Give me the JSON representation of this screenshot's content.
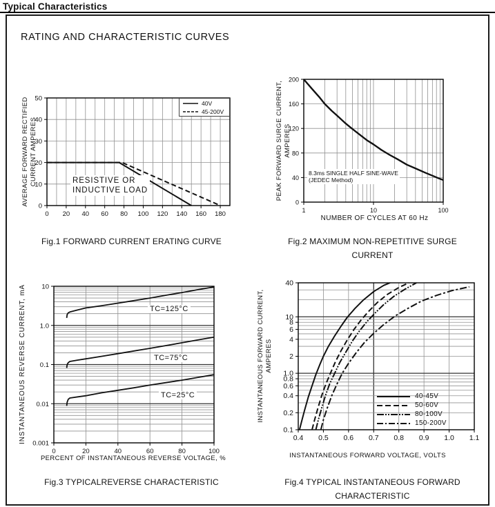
{
  "page": {
    "title": "Typical Characteristics",
    "box_heading": "RATING AND CHARACTERISTIC CURVES"
  },
  "colors": {
    "ink": "#111111",
    "grid_minor": "#909090",
    "grid_dark": "#333333",
    "border": "#000000",
    "background": "#ffffff"
  },
  "chart_data": [
    {
      "type": "line",
      "figure": "Fig.1",
      "caption": [
        "Fig.1 FORWARD CURRENT ERATING CURVE"
      ],
      "x_axis": {
        "title": "",
        "scale": "linear",
        "min": 0,
        "max": 190,
        "grid": 10,
        "ticks": [
          {
            "v": 0,
            "t": "0"
          },
          {
            "v": 20,
            "t": "20"
          },
          {
            "v": 40,
            "t": "40"
          },
          {
            "v": 60,
            "t": "60"
          },
          {
            "v": 80,
            "t": "80"
          },
          {
            "v": 100,
            "t": "100"
          },
          {
            "v": 120,
            "t": "120"
          },
          {
            "v": 140,
            "t": "140"
          },
          {
            "v": 160,
            "t": "160"
          },
          {
            "v": 180,
            "t": "180"
          }
        ]
      },
      "y_axis": {
        "label_lines": [
          "AVERAGE FORWARD RECTIFIED",
          "CURRENT AMPERES"
        ],
        "scale": "linear",
        "min": 0,
        "max": 50,
        "grid": 10,
        "ticks": [
          {
            "v": 0,
            "t": "0"
          },
          {
            "v": 10,
            "t": "10"
          },
          {
            "v": 20,
            "t": "20"
          },
          {
            "v": 30,
            "t": "30"
          },
          {
            "v": 40,
            "t": "40"
          },
          {
            "v": 50,
            "t": "50"
          }
        ]
      },
      "legend": {
        "position": "top-right",
        "border": true,
        "entries": [
          {
            "name": "40V",
            "style": "solid"
          },
          {
            "name": "45-200V",
            "style": "dashed"
          }
        ]
      },
      "annotations": [
        {
          "lines": [
            "RESISTIVE OR",
            "INDUCTIVE LOAD"
          ]
        }
      ],
      "series": [
        {
          "name": "40V",
          "dash": null,
          "width": 2,
          "points": [
            [
              0,
              20
            ],
            [
              75,
              20
            ],
            [
              150,
              0
            ]
          ]
        },
        {
          "name": "45-200V",
          "dash": "7,4",
          "width": 2,
          "points": [
            [
              0,
              20
            ],
            [
              78,
              20
            ],
            [
              180,
              0
            ]
          ]
        }
      ]
    },
    {
      "type": "line",
      "figure": "Fig.2",
      "caption": [
        "Fig.2 MAXIMUM NON-REPETITIVE SURGE",
        "CURRENT"
      ],
      "x_axis": {
        "title": "NUMBER OF CYCLES AT 60 Hz",
        "scale": "log",
        "min": 1,
        "max": 100,
        "ticks": [
          {
            "v": 1,
            "t": "1"
          },
          {
            "v": 10,
            "t": "10"
          },
          {
            "v": 100,
            "t": "100"
          }
        ]
      },
      "y_axis": {
        "label_lines": [
          "PEAK  FORWARD SURGE CURRENT,",
          "AMPERES"
        ],
        "scale": "linear",
        "min": 0,
        "max": 200,
        "grid": 40,
        "ticks": [
          {
            "v": 0,
            "t": "0"
          },
          {
            "v": 40,
            "t": "40"
          },
          {
            "v": 80,
            "t": "80"
          },
          {
            "v": 120,
            "t": "120"
          },
          {
            "v": 160,
            "t": "160"
          },
          {
            "v": 200,
            "t": "200"
          }
        ]
      },
      "annotations": [
        {
          "lines": [
            "8.3ms SINGLE HALF SINE-WAVE",
            "(JEDEC Method)"
          ]
        }
      ],
      "series": [
        {
          "name": "surge-current",
          "dash": null,
          "width": 2.4,
          "points": [
            [
              1,
              200
            ],
            [
              1.3,
              185
            ],
            [
              1.7,
              170
            ],
            [
              2,
              160
            ],
            [
              2.5,
              149
            ],
            [
              3,
              141
            ],
            [
              4,
              128
            ],
            [
              5,
              119
            ],
            [
              6,
              112
            ],
            [
              8,
              101
            ],
            [
              10,
              94
            ],
            [
              13,
              85
            ],
            [
              17,
              77
            ],
            [
              22,
              70
            ],
            [
              30,
              61
            ],
            [
              40,
              55
            ],
            [
              55,
              48
            ],
            [
              70,
              43
            ],
            [
              85,
              39
            ],
            [
              100,
              36
            ]
          ]
        }
      ]
    },
    {
      "type": "line",
      "figure": "Fig.3",
      "caption": [
        "Fig.3 TYPICALREVERSE CHARACTERISTIC"
      ],
      "x_axis": {
        "title": "PERCENT OF INSTANTANEOUS REVERSE VOLTAGE, %",
        "scale": "linear",
        "min": 0,
        "max": 100,
        "grid": 20,
        "ticks": [
          {
            "v": 0,
            "t": "0"
          },
          {
            "v": 20,
            "t": "20"
          },
          {
            "v": 40,
            "t": "40"
          },
          {
            "v": 60,
            "t": "60"
          },
          {
            "v": 80,
            "t": "80"
          },
          {
            "v": 100,
            "t": "100"
          }
        ]
      },
      "y_axis": {
        "label_lines": [
          "INSTANTANEOUS REVERSE CURRENT, mA"
        ],
        "scale": "log",
        "min": 0.001,
        "max": 10,
        "dark": [
          0.01,
          0.1,
          1
        ],
        "ticks": [
          {
            "v": 10,
            "t": "10"
          },
          {
            "v": 1,
            "t": "1.0"
          },
          {
            "v": 0.1,
            "t": "0.1"
          },
          {
            "v": 0.01,
            "t": "0.01"
          },
          {
            "v": 0.001,
            "t": "0.001"
          }
        ]
      },
      "annotations": [
        {
          "lines": [
            "TC=125°C"
          ]
        },
        {
          "lines": [
            "TC=75°C"
          ]
        },
        {
          "lines": [
            "TC=25°C"
          ]
        }
      ],
      "series": [
        {
          "name": "TC=125C",
          "dash": null,
          "width": 1.8,
          "points": [
            [
              8,
              1.55
            ],
            [
              8.3,
              1.9
            ],
            [
              9,
              2.1
            ],
            [
              10,
              2.2
            ],
            [
              15,
              2.5
            ],
            [
              20,
              2.8
            ],
            [
              30,
              3.2
            ],
            [
              40,
              3.7
            ],
            [
              50,
              4.3
            ],
            [
              60,
              5.0
            ],
            [
              70,
              5.9
            ],
            [
              80,
              6.9
            ],
            [
              90,
              8.2
            ],
            [
              100,
              9.6
            ]
          ]
        },
        {
          "name": "TC=75C",
          "dash": null,
          "width": 1.8,
          "points": [
            [
              8,
              0.082
            ],
            [
              8.3,
              0.1
            ],
            [
              9,
              0.112
            ],
            [
              10,
              0.12
            ],
            [
              15,
              0.13
            ],
            [
              20,
              0.14
            ],
            [
              30,
              0.163
            ],
            [
              40,
              0.19
            ],
            [
              50,
              0.222
            ],
            [
              60,
              0.26
            ],
            [
              70,
              0.305
            ],
            [
              80,
              0.36
            ],
            [
              90,
              0.425
            ],
            [
              100,
              0.5
            ]
          ]
        },
        {
          "name": "TC=25C",
          "dash": null,
          "width": 1.8,
          "points": [
            [
              8,
              0.0088
            ],
            [
              8.3,
              0.011
            ],
            [
              9,
              0.013
            ],
            [
              10,
              0.014
            ],
            [
              15,
              0.015
            ],
            [
              20,
              0.016
            ],
            [
              30,
              0.019
            ],
            [
              40,
              0.022
            ],
            [
              50,
              0.0255
            ],
            [
              60,
              0.03
            ],
            [
              70,
              0.0345
            ],
            [
              80,
              0.04
            ],
            [
              90,
              0.047
            ],
            [
              100,
              0.055
            ]
          ]
        }
      ]
    },
    {
      "type": "line",
      "figure": "Fig.4",
      "caption": [
        "Fig.4 TYPICAL INSTANTANEOUS FORWARD",
        "CHARACTERISTIC"
      ],
      "x_axis": {
        "title": "INSTANTANEOUS FORWARD VOLTAGE, VOLTS",
        "scale": "linear",
        "min": 0.4,
        "max": 1.1,
        "grid": 0.1,
        "dark": [
          0.7
        ],
        "ticks": [
          {
            "v": 0.4,
            "t": "0.4"
          },
          {
            "v": 0.5,
            "t": "0.5"
          },
          {
            "v": 0.6,
            "t": "0.6"
          },
          {
            "v": 0.7,
            "t": "0.7"
          },
          {
            "v": 0.8,
            "t": "0.8"
          },
          {
            "v": 0.9,
            "t": "0.9"
          },
          {
            "v": 1.0,
            "t": "1.0"
          },
          {
            "v": 1.1,
            "t": "1.1"
          }
        ]
      },
      "y_axis": {
        "label_lines": [
          "INSTANTANEOUS FORWARD CURRENT,",
          "AMPERES"
        ],
        "scale": "log",
        "min": 0.1,
        "max": 40,
        "dark": [
          1,
          10
        ],
        "ticks": [
          {
            "v": 40,
            "t": "40"
          },
          {
            "v": 10,
            "t": "10"
          },
          {
            "v": 8,
            "t": "8"
          },
          {
            "v": 6,
            "t": "6"
          },
          {
            "v": 4,
            "t": "4"
          },
          {
            "v": 2,
            "t": "2"
          },
          {
            "v": 1,
            "t": "1.0"
          },
          {
            "v": 0.8,
            "t": "0.8"
          },
          {
            "v": 0.6,
            "t": "0.6"
          },
          {
            "v": 0.4,
            "t": "0.4"
          },
          {
            "v": 0.2,
            "t": "0.2"
          },
          {
            "v": 0.1,
            "t": "0.1"
          }
        ]
      },
      "legend": {
        "position": "bottom-right",
        "border": false,
        "entries": [
          {
            "name": "40-45V",
            "style": "solid"
          },
          {
            "name": "50-60V",
            "style": "dashed"
          },
          {
            "name": "80-100V",
            "style": "dash-dot-dot"
          },
          {
            "name": "150-200V",
            "style": "dash-dot"
          }
        ]
      },
      "annotations": [],
      "series": [
        {
          "name": "40-45V",
          "dash": null,
          "width": 2,
          "points": [
            [
              0.405,
              0.1
            ],
            [
              0.415,
              0.15
            ],
            [
              0.425,
              0.22
            ],
            [
              0.44,
              0.38
            ],
            [
              0.455,
              0.6
            ],
            [
              0.47,
              0.95
            ],
            [
              0.485,
              1.4
            ],
            [
              0.5,
              2.0
            ],
            [
              0.52,
              3.0
            ],
            [
              0.545,
              4.6
            ],
            [
              0.57,
              6.8
            ],
            [
              0.595,
              9.8
            ],
            [
              0.625,
              14
            ],
            [
              0.66,
              20
            ],
            [
              0.7,
              28
            ],
            [
              0.74,
              36
            ],
            [
              0.765,
              40
            ]
          ]
        },
        {
          "name": "50-60V",
          "dash": "8,4",
          "width": 2,
          "points": [
            [
              0.455,
              0.1
            ],
            [
              0.465,
              0.15
            ],
            [
              0.478,
              0.24
            ],
            [
              0.493,
              0.4
            ],
            [
              0.51,
              0.65
            ],
            [
              0.528,
              1.0
            ],
            [
              0.548,
              1.6
            ],
            [
              0.57,
              2.5
            ],
            [
              0.595,
              3.9
            ],
            [
              0.622,
              6.0
            ],
            [
              0.65,
              8.8
            ],
            [
              0.68,
              12.5
            ],
            [
              0.715,
              18
            ],
            [
              0.755,
              25
            ],
            [
              0.8,
              33
            ],
            [
              0.84,
              40
            ]
          ]
        },
        {
          "name": "80-100V",
          "dash": "10,2,2,2,2,2",
          "width": 2,
          "points": [
            [
              0.47,
              0.1
            ],
            [
              0.48,
              0.15
            ],
            [
              0.493,
              0.24
            ],
            [
              0.508,
              0.4
            ],
            [
              0.525,
              0.65
            ],
            [
              0.545,
              1.0
            ],
            [
              0.565,
              1.55
            ],
            [
              0.59,
              2.4
            ],
            [
              0.615,
              3.7
            ],
            [
              0.643,
              5.6
            ],
            [
              0.673,
              8.2
            ],
            [
              0.705,
              11.6
            ],
            [
              0.74,
              16.5
            ],
            [
              0.78,
              23
            ],
            [
              0.825,
              31
            ],
            [
              0.87,
              40
            ]
          ]
        },
        {
          "name": "150-200V",
          "dash": "10,3,3,3",
          "width": 2,
          "points": [
            [
              0.49,
              0.1
            ],
            [
              0.5,
              0.15
            ],
            [
              0.515,
              0.24
            ],
            [
              0.533,
              0.4
            ],
            [
              0.553,
              0.63
            ],
            [
              0.575,
              1.0
            ],
            [
              0.6,
              1.5
            ],
            [
              0.63,
              2.3
            ],
            [
              0.663,
              3.5
            ],
            [
              0.7,
              5.1
            ],
            [
              0.74,
              7.3
            ],
            [
              0.785,
              10.3
            ],
            [
              0.835,
              14
            ],
            [
              0.89,
              19
            ],
            [
              0.95,
              24
            ],
            [
              1.01,
              29
            ],
            [
              1.08,
              34
            ]
          ]
        }
      ]
    }
  ]
}
